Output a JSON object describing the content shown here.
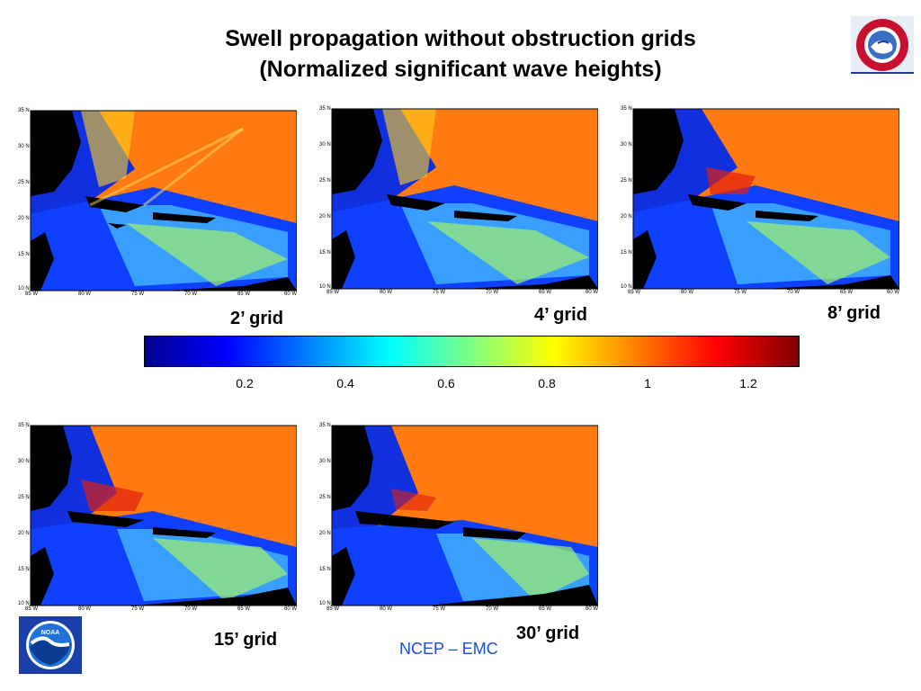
{
  "title": {
    "line1": "Swell propagation without obstruction grids",
    "line2": "(Normalized significant wave heights)"
  },
  "panels": [
    {
      "label": "2’ grid"
    },
    {
      "label": "4’ grid"
    },
    {
      "label": "8’ grid"
    },
    {
      "label": "15’ grid"
    },
    {
      "label": "30’ grid"
    }
  ],
  "axis": {
    "lat_ticks": [
      "35 N",
      "30 N",
      "25 N",
      "20 N",
      "15 N",
      "10 N"
    ],
    "lon_ticks": [
      "85 W",
      "80 W",
      "75 W",
      "70 W",
      "65 W",
      "60 W"
    ]
  },
  "colorbar": {
    "ticks": [
      "0.2",
      "0.4",
      "0.6",
      "0.8",
      "1",
      "1.2"
    ],
    "colors": [
      "#00008f",
      "#0000ff",
      "#0080ff",
      "#00ffff",
      "#80ff80",
      "#ffff00",
      "#ff8000",
      "#ff0000",
      "#800000"
    ]
  },
  "footer": {
    "credit": "NCEP – EMC"
  },
  "logos": {
    "nws": "NATIONAL WEATHER SERVICE",
    "noaa": "NOAA"
  }
}
